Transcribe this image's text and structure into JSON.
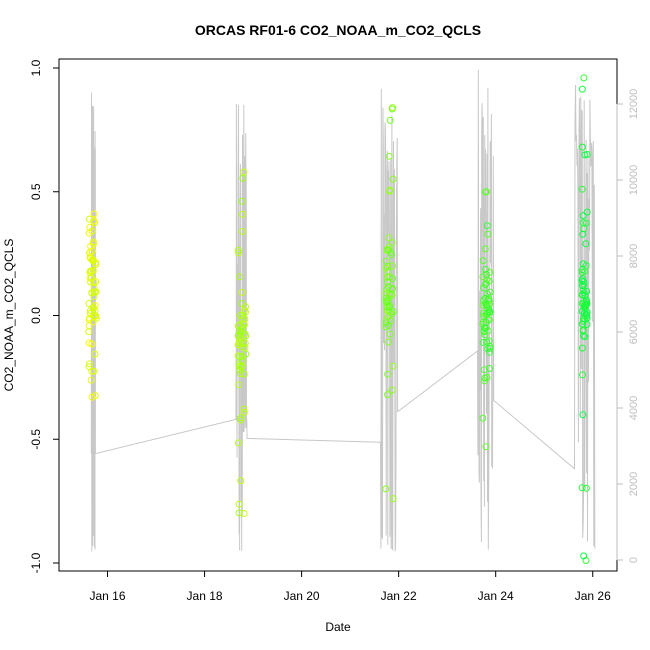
{
  "chart_data": {
    "type": "scatter",
    "title": "ORCAS RF01-6 CO2_NOAA_m_CO2_QCLS",
    "xlabel": "Date",
    "ylabel": "CO2_NOAA_m_CO2_QCLS",
    "xlim_days": [
      "2016-01-15T00:00",
      "2016-01-26T12:00"
    ],
    "xticks": [
      {
        "value": "2016-01-16",
        "label": "Jan 16"
      },
      {
        "value": "2016-01-18",
        "label": "Jan 18"
      },
      {
        "value": "2016-01-20",
        "label": "Jan 20"
      },
      {
        "value": "2016-01-22",
        "label": "Jan 22"
      },
      {
        "value": "2016-01-24",
        "label": "Jan 24"
      },
      {
        "value": "2016-01-26",
        "label": "Jan 26"
      }
    ],
    "ylim": [
      -1.0,
      1.0
    ],
    "yticks": [
      "1.0",
      "0.5",
      "0.0",
      "-0.5",
      "-1.0"
    ],
    "ytick_values": [
      1.0,
      0.5,
      0.0,
      -0.5,
      -1.0
    ],
    "y2lim": [
      0,
      13000
    ],
    "y2ticks": [
      "0",
      "2000",
      "4000",
      "6000",
      "8000",
      "10000",
      "12000"
    ],
    "y2tick_values": [
      0,
      2000,
      4000,
      6000,
      8000,
      10000,
      12000
    ],
    "grid": false,
    "series": [
      {
        "kind": "points",
        "color_gradient": [
          "#ffff00",
          "#00ff44"
        ],
        "clusters": [
          {
            "x": "2016-01-15T16:30",
            "ymin": -0.33,
            "ymax": 0.41
          },
          {
            "x": "2016-01-18T18:30",
            "ymin": -0.8,
            "ymax": 0.58
          },
          {
            "x": "2016-01-21T19:30",
            "ymin": -0.74,
            "ymax": 0.84
          },
          {
            "x": "2016-01-23T19:30",
            "ymin": -0.53,
            "ymax": 0.5
          },
          {
            "x": "2016-01-25T20:00",
            "ymin": -0.99,
            "ymax": 0.96
          }
        ]
      },
      {
        "kind": "line",
        "axis": "right",
        "color": "#c8c8c8",
        "flights": [
          {
            "x0": "2016-01-15T16:00",
            "x1": "2016-01-15T18:00",
            "alt_start": 2800,
            "alt_max": 12300,
            "alt_end": 2800
          },
          {
            "x0": "2016-01-18T15:30",
            "x1": "2016-01-18T21:00",
            "alt_start": 3700,
            "alt_max": 12000,
            "alt_end": 3200
          },
          {
            "x0": "2016-01-21T15:00",
            "x1": "2016-01-21T23:30",
            "alt_start": 3100,
            "alt_max": 12400,
            "alt_end": 3900
          },
          {
            "x0": "2016-01-23T15:00",
            "x1": "2016-01-23T23:00",
            "alt_start": 5500,
            "alt_max": 12900,
            "alt_end": 4200
          },
          {
            "x0": "2016-01-25T15:00",
            "x1": "2016-01-26T01:00",
            "alt_start": 2400,
            "alt_max": 12500,
            "alt_end": 300
          }
        ]
      }
    ]
  }
}
